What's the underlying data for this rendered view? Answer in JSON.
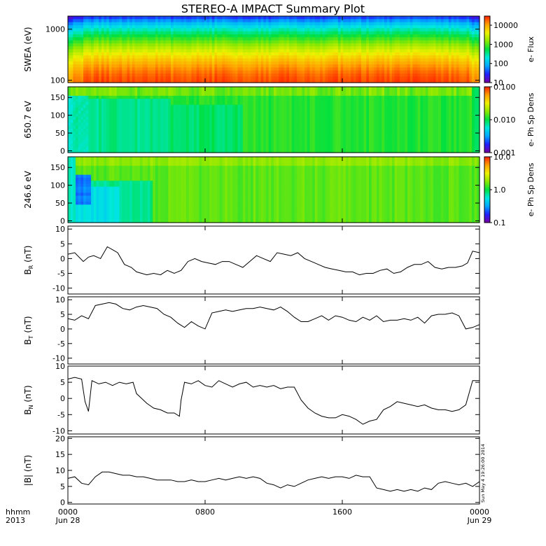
{
  "title": "STEREO-A IMPACT Summary Plot",
  "stamp": "Sun May  4 19:26:00 2014",
  "time_axis": {
    "corner_labels": [
      "hhmm",
      "2013"
    ],
    "ticks": [
      {
        "hour": 0,
        "line1": "0000",
        "line2": "Jun 28"
      },
      {
        "hour": 8,
        "line1": "0800",
        "line2": ""
      },
      {
        "hour": 16,
        "line1": "1600",
        "line2": ""
      },
      {
        "hour": 24,
        "line1": "0000",
        "line2": "Jun 29"
      }
    ],
    "range_hours": [
      0,
      24
    ]
  },
  "colors": {
    "colormap": [
      "#7800a0",
      "#2020ff",
      "#00a8ff",
      "#00e8e0",
      "#00e040",
      "#8ce800",
      "#f0f000",
      "#ffa000",
      "#ff2000"
    ]
  },
  "chart_data": [
    {
      "type": "heatmap",
      "ylabel": "SWEA (eV)",
      "yscale": "log",
      "ylim": [
        90,
        1800
      ],
      "yticks": [
        "1000",
        "100"
      ],
      "yticks_values": [
        1000,
        100
      ],
      "colorbar": {
        "label": "e- Flux",
        "scale": "log",
        "range": [
          10,
          30000
        ],
        "ticks": [
          "10000",
          "1000",
          "100",
          "10"
        ],
        "tick_values": [
          10000,
          1000,
          100,
          10
        ]
      },
      "description_profile": "flux highest (~10000) near 100-130 eV, decreasing with energy to ~10 above 1500 eV"
    },
    {
      "type": "heatmap",
      "ylabel": "650.7 eV",
      "ylim": [
        -5,
        180
      ],
      "yticks": [
        "150",
        "100",
        "50",
        "0"
      ],
      "yticks_values": [
        150,
        100,
        50,
        0
      ],
      "colorbar": {
        "label": "e- Ph Sp Dens",
        "scale": "log",
        "range": [
          0.001,
          0.1
        ],
        "ticks": [
          "0.100",
          "0.010",
          "0.001"
        ],
        "tick_values": [
          0.1,
          0.01,
          0.001
        ]
      }
    },
    {
      "type": "heatmap",
      "ylabel": "246.6 eV",
      "ylim": [
        -5,
        180
      ],
      "yticks": [
        "150",
        "100",
        "50",
        "0"
      ],
      "yticks_values": [
        150,
        100,
        50,
        0
      ],
      "colorbar": {
        "label": "e- Ph Sp Dens",
        "scale": "log",
        "range": [
          0.1,
          10
        ],
        "ticks": [
          "10.0",
          "1.0",
          "0.1"
        ],
        "tick_values": [
          10,
          1,
          0.1
        ]
      }
    },
    {
      "type": "line",
      "ylabel_main": "B",
      "ylabel_sub": "R",
      "ylabel_unit": " (nT)",
      "ylim": [
        -12,
        11
      ],
      "yticks": [
        "10",
        "5",
        "0",
        "-5",
        "-10"
      ],
      "yticks_values": [
        10,
        5,
        0,
        -5,
        -10
      ],
      "x": [
        0,
        0.4,
        0.9,
        1.2,
        1.5,
        1.9,
        2.3,
        2.6,
        2.9,
        3.3,
        3.7,
        4.0,
        4.3,
        4.6,
        5.0,
        5.4,
        5.8,
        6.2,
        6.6,
        7.0,
        7.4,
        7.8,
        8.2,
        8.6,
        9.0,
        9.4,
        9.8,
        10.2,
        10.6,
        11.0,
        11.4,
        11.8,
        12.2,
        12.6,
        13.0,
        13.4,
        13.8,
        14.2,
        14.6,
        15.0,
        15.4,
        15.8,
        16.2,
        16.6,
        17.0,
        17.4,
        17.8,
        18.2,
        18.6,
        19.0,
        19.4,
        19.8,
        20.2,
        20.6,
        21.0,
        21.4,
        21.8,
        22.2,
        22.6,
        23.0,
        23.3,
        23.6,
        24.0
      ],
      "y": [
        1.5,
        2.0,
        -1.0,
        0.5,
        1.0,
        0.0,
        4.0,
        3.0,
        2.0,
        -2.0,
        -3.0,
        -4.5,
        -5.0,
        -5.5,
        -5.0,
        -5.5,
        -4.0,
        -5.0,
        -4.0,
        -1.0,
        0.0,
        -1.0,
        -1.5,
        -2.0,
        -1.0,
        -1.0,
        -2.0,
        -3.0,
        -1.0,
        1.0,
        0.0,
        -1.0,
        2.0,
        1.5,
        1.0,
        2.0,
        0.0,
        -1.0,
        -2.0,
        -3.0,
        -3.5,
        -4.0,
        -4.5,
        -4.5,
        -5.5,
        -5.0,
        -5.0,
        -4.0,
        -3.5,
        -5.0,
        -4.5,
        -3.0,
        -2.0,
        -2.0,
        -1.0,
        -3.0,
        -3.5,
        -3.0,
        -3.0,
        -2.5,
        -1.5,
        2.5,
        2.0
      ]
    },
    {
      "type": "line",
      "ylabel_main": "B",
      "ylabel_sub": "T",
      "ylabel_unit": " (nT)",
      "ylim": [
        -12,
        11
      ],
      "yticks": [
        "10",
        "5",
        "0",
        "-5",
        "-10"
      ],
      "yticks_values": [
        10,
        5,
        0,
        -5,
        -10
      ],
      "x": [
        0,
        0.4,
        0.8,
        1.2,
        1.6,
        2.0,
        2.4,
        2.8,
        3.2,
        3.6,
        4.0,
        4.4,
        4.8,
        5.2,
        5.6,
        6.0,
        6.4,
        6.8,
        7.2,
        7.6,
        8.0,
        8.4,
        8.8,
        9.2,
        9.6,
        10.0,
        10.4,
        10.8,
        11.2,
        11.6,
        12.0,
        12.4,
        12.8,
        13.2,
        13.6,
        14.0,
        14.4,
        14.8,
        15.2,
        15.6,
        16.0,
        16.4,
        16.8,
        17.2,
        17.6,
        18.0,
        18.4,
        18.8,
        19.2,
        19.6,
        20.0,
        20.4,
        20.8,
        21.2,
        21.6,
        22.0,
        22.4,
        22.8,
        23.2,
        23.6,
        24.0
      ],
      "y": [
        3.5,
        3.0,
        4.5,
        3.5,
        8.0,
        8.5,
        9.0,
        8.5,
        7.0,
        6.5,
        7.5,
        8.0,
        7.5,
        7.0,
        5.0,
        4.0,
        2.0,
        0.5,
        2.5,
        1.0,
        0.0,
        5.5,
        6.0,
        6.5,
        6.0,
        6.5,
        7.0,
        7.0,
        7.5,
        7.0,
        6.5,
        7.5,
        6.0,
        4.0,
        2.5,
        2.5,
        3.5,
        4.5,
        3.0,
        4.5,
        4.0,
        3.0,
        2.5,
        4.0,
        3.0,
        4.5,
        2.5,
        3.0,
        3.0,
        3.5,
        3.0,
        4.0,
        2.0,
        4.5,
        5.0,
        5.0,
        5.5,
        4.5,
        0.0,
        0.5,
        1.5
      ]
    },
    {
      "type": "line",
      "ylabel_main": "B",
      "ylabel_sub": "N",
      "ylabel_unit": " (nT)",
      "ylim": [
        -11,
        10
      ],
      "yticks": [
        "10",
        "5",
        "0",
        "-5",
        "-10"
      ],
      "yticks_values": [
        10,
        5,
        0,
        -5,
        -10
      ],
      "x": [
        0,
        0.4,
        0.8,
        1.0,
        1.2,
        1.4,
        1.8,
        2.2,
        2.6,
        3.0,
        3.4,
        3.8,
        4.0,
        4.3,
        4.6,
        5.0,
        5.4,
        5.8,
        6.2,
        6.5,
        6.6,
        6.8,
        7.2,
        7.6,
        8.0,
        8.4,
        8.8,
        9.2,
        9.6,
        10.0,
        10.4,
        10.8,
        11.2,
        11.6,
        12.0,
        12.4,
        12.8,
        13.2,
        13.6,
        14.0,
        14.4,
        14.8,
        15.2,
        15.6,
        16.0,
        16.4,
        16.8,
        17.2,
        17.6,
        18.0,
        18.4,
        18.8,
        19.2,
        19.6,
        20.0,
        20.4,
        20.8,
        21.2,
        21.6,
        22.0,
        22.4,
        22.8,
        23.2,
        23.6,
        24.0
      ],
      "y": [
        6.0,
        6.5,
        6.0,
        -1.0,
        -4.0,
        5.5,
        4.5,
        5.0,
        4.0,
        5.0,
        4.5,
        5.0,
        1.5,
        0.0,
        -1.5,
        -3.0,
        -3.5,
        -4.5,
        -4.5,
        -5.5,
        -0.5,
        5.0,
        4.5,
        5.5,
        4.0,
        3.5,
        5.5,
        4.5,
        3.5,
        4.5,
        5.0,
        3.5,
        4.0,
        3.5,
        4.0,
        3.0,
        3.5,
        3.5,
        -0.5,
        -3.0,
        -4.5,
        -5.5,
        -6.0,
        -6.0,
        -5.0,
        -5.5,
        -6.5,
        -8.0,
        -7.0,
        -6.5,
        -3.5,
        -2.5,
        -1.0,
        -1.5,
        -2.0,
        -2.5,
        -2.0,
        -3.0,
        -3.5,
        -3.5,
        -4.0,
        -3.5,
        -2.0,
        5.5,
        5.5
      ]
    },
    {
      "type": "line",
      "ylabel": "|B| (nT)",
      "ylim": [
        -0.5,
        20.5
      ],
      "yticks": [
        "20",
        "15",
        "10",
        "5",
        "0"
      ],
      "yticks_values": [
        20,
        15,
        10,
        5,
        0
      ],
      "x": [
        0,
        0.4,
        0.8,
        1.2,
        1.6,
        2.0,
        2.4,
        2.8,
        3.2,
        3.6,
        4.0,
        4.4,
        4.8,
        5.2,
        5.6,
        6.0,
        6.4,
        6.8,
        7.2,
        7.6,
        8.0,
        8.4,
        8.8,
        9.2,
        9.6,
        10.0,
        10.4,
        10.8,
        11.2,
        11.6,
        12.0,
        12.4,
        12.8,
        13.2,
        13.6,
        14.0,
        14.4,
        14.8,
        15.2,
        15.6,
        16.0,
        16.4,
        16.8,
        17.2,
        17.6,
        18.0,
        18.4,
        18.8,
        19.2,
        19.6,
        20.0,
        20.4,
        20.8,
        21.2,
        21.6,
        22.0,
        22.4,
        22.8,
        23.2,
        23.6,
        24.0
      ],
      "y": [
        7.5,
        8.0,
        6.0,
        5.5,
        8.0,
        9.5,
        9.5,
        9.0,
        8.5,
        8.5,
        8.0,
        8.0,
        7.5,
        7.0,
        7.0,
        7.0,
        6.5,
        6.5,
        7.0,
        6.5,
        6.5,
        7.0,
        7.5,
        7.0,
        7.5,
        8.0,
        7.5,
        8.0,
        7.5,
        6.0,
        5.5,
        4.5,
        5.5,
        5.0,
        6.0,
        7.0,
        7.5,
        8.0,
        7.5,
        8.0,
        8.0,
        7.5,
        8.5,
        8.0,
        8.0,
        4.5,
        4.0,
        3.5,
        4.0,
        3.5,
        4.0,
        3.5,
        4.5,
        4.0,
        6.0,
        6.5,
        6.0,
        5.5,
        6.0,
        5.0,
        6.5
      ]
    }
  ]
}
